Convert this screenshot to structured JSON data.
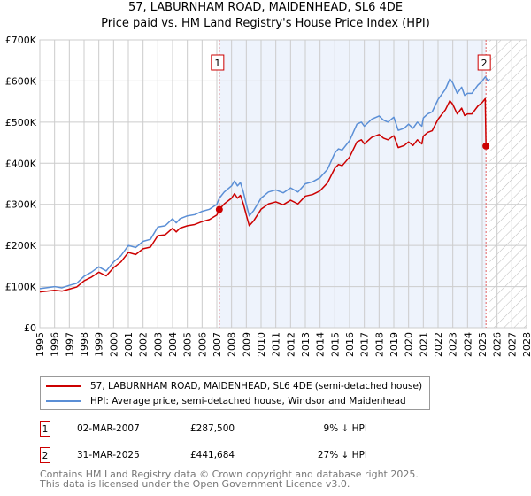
{
  "chart_data": {
    "type": "line",
    "title": "57, LABURNHAM ROAD, MAIDENHEAD, SL6 4DE",
    "subtitle": "Price paid vs. HM Land Registry's House Price Index (HPI)",
    "xlim": [
      1995,
      2028
    ],
    "ylim": [
      0,
      700000
    ],
    "y_ticks": [
      {
        "v": 0,
        "label": "£0"
      },
      {
        "v": 100000,
        "label": "£100K"
      },
      {
        "v": 200000,
        "label": "£200K"
      },
      {
        "v": 300000,
        "label": "£300K"
      },
      {
        "v": 400000,
        "label": "£400K"
      },
      {
        "v": 500000,
        "label": "£500K"
      },
      {
        "v": 600000,
        "label": "£600K"
      },
      {
        "v": 700000,
        "label": "£700K"
      }
    ],
    "x_ticks": [
      "1995",
      "1996",
      "1997",
      "1998",
      "1999",
      "2000",
      "2001",
      "2002",
      "2003",
      "2004",
      "2005",
      "2006",
      "2007",
      "2008",
      "2009",
      "2010",
      "2011",
      "2012",
      "2013",
      "2014",
      "2015",
      "2016",
      "2017",
      "2018",
      "2019",
      "2020",
      "2021",
      "2022",
      "2023",
      "2024",
      "2025",
      "2026",
      "2027",
      "2028"
    ],
    "grid": true,
    "shaded_period": [
      2007.17,
      2025.25
    ],
    "forecast_hatch_from": 2025.5,
    "series": [
      {
        "name": "57, LABURNHAM ROAD, MAIDENHEAD, SL6 4DE (semi-detached house)",
        "color": "#cc0000",
        "x": [
          1995,
          1996,
          1996.5,
          1997,
          1997.5,
          1998,
          1998.5,
          1999,
          1999.5,
          2000,
          2000.5,
          2001,
          2001.5,
          2002,
          2002.5,
          2003,
          2003.5,
          2004,
          2004.25,
          2004.5,
          2005,
          2005.5,
          2006,
          2006.5,
          2007,
          2007.17,
          2007.5,
          2008,
          2008.2,
          2008.4,
          2008.6,
          2008.8,
          2009,
          2009.2,
          2009.5,
          2010,
          2010.5,
          2011,
          2011.5,
          2012,
          2012.5,
          2013,
          2013.5,
          2014,
          2014.5,
          2015,
          2015.25,
          2015.5,
          2016,
          2016.5,
          2016.8,
          2017,
          2017.5,
          2018,
          2018.3,
          2018.6,
          2019,
          2019.3,
          2019.7,
          2020,
          2020.3,
          2020.6,
          2020.9,
          2021,
          2021.3,
          2021.6,
          2022,
          2022.5,
          2022.8,
          2023,
          2023.3,
          2023.6,
          2023.8,
          2024,
          2024.3,
          2024.7,
          2025,
          2025.2,
          2025.25
        ],
        "y": [
          87,
          91,
          89,
          94,
          99,
          114,
          123,
          135,
          126,
          146,
          160,
          183,
          178,
          192,
          196,
          224,
          226,
          242,
          233,
          242,
          248,
          251,
          258,
          263,
          274,
          287.5,
          301,
          315,
          326,
          315,
          322,
          301,
          274,
          248,
          260,
          288,
          301,
          306,
          299,
          310,
          301,
          320,
          324,
          333,
          352,
          388,
          397,
          394,
          415,
          452,
          457,
          447,
          463,
          470,
          461,
          457,
          467,
          438,
          443,
          452,
          443,
          457,
          447,
          466,
          475,
          479,
          507,
          530,
          552,
          543,
          520,
          534,
          516,
          520,
          520,
          539,
          548,
          557,
          441.684
        ]
      },
      {
        "name": "HPI: Average price, semi-detached house, Windsor and Maidenhead",
        "color": "#5b8fd6",
        "x": [
          1995,
          1996,
          1996.5,
          1997,
          1997.5,
          1998,
          1998.5,
          1999,
          1999.5,
          2000,
          2000.5,
          2001,
          2001.5,
          2002,
          2002.5,
          2003,
          2003.5,
          2004,
          2004.25,
          2004.5,
          2005,
          2005.5,
          2006,
          2006.5,
          2007,
          2007.17,
          2007.5,
          2008,
          2008.2,
          2008.4,
          2008.6,
          2008.8,
          2009,
          2009.2,
          2009.5,
          2010,
          2010.5,
          2011,
          2011.5,
          2012,
          2012.5,
          2013,
          2013.5,
          2014,
          2014.5,
          2015,
          2015.25,
          2015.5,
          2016,
          2016.5,
          2016.8,
          2017,
          2017.5,
          2018,
          2018.3,
          2018.6,
          2019,
          2019.3,
          2019.7,
          2020,
          2020.3,
          2020.6,
          2020.9,
          2021,
          2021.3,
          2021.6,
          2022,
          2022.5,
          2022.8,
          2023,
          2023.3,
          2023.6,
          2023.8,
          2024,
          2024.3,
          2024.7,
          2025,
          2025.2,
          2025.4,
          2025.5
        ],
        "y": [
          95,
          100,
          97,
          103,
          108,
          125,
          135,
          148,
          138,
          160,
          175,
          200,
          195,
          210,
          215,
          245,
          248,
          265,
          255,
          265,
          272,
          275,
          283,
          288,
          300,
          315,
          330,
          345,
          357,
          345,
          353,
          330,
          300,
          272,
          285,
          315,
          330,
          335,
          328,
          340,
          330,
          350,
          355,
          365,
          385,
          425,
          435,
          432,
          455,
          495,
          500,
          490,
          507,
          515,
          505,
          500,
          512,
          480,
          485,
          495,
          485,
          500,
          490,
          510,
          520,
          525,
          555,
          580,
          605,
          595,
          570,
          585,
          565,
          570,
          570,
          590,
          600,
          610,
          600,
          605
        ]
      }
    ],
    "y_units": "thousands GBP",
    "sales": [
      {
        "id": "1",
        "x": 2007.17,
        "price": 287500,
        "date": "02-MAR-2007",
        "price_label": "£287,500",
        "hpi_diff": "9% ↓ HPI"
      },
      {
        "id": "2",
        "x": 2025.25,
        "price": 441684,
        "date": "31-MAR-2025",
        "price_label": "£441,684",
        "hpi_diff": "27% ↓ HPI"
      }
    ]
  },
  "footer": {
    "line1": "Contains HM Land Registry data © Crown copyright and database right 2025.",
    "line2": "This data is licensed under the Open Government Licence v3.0."
  }
}
